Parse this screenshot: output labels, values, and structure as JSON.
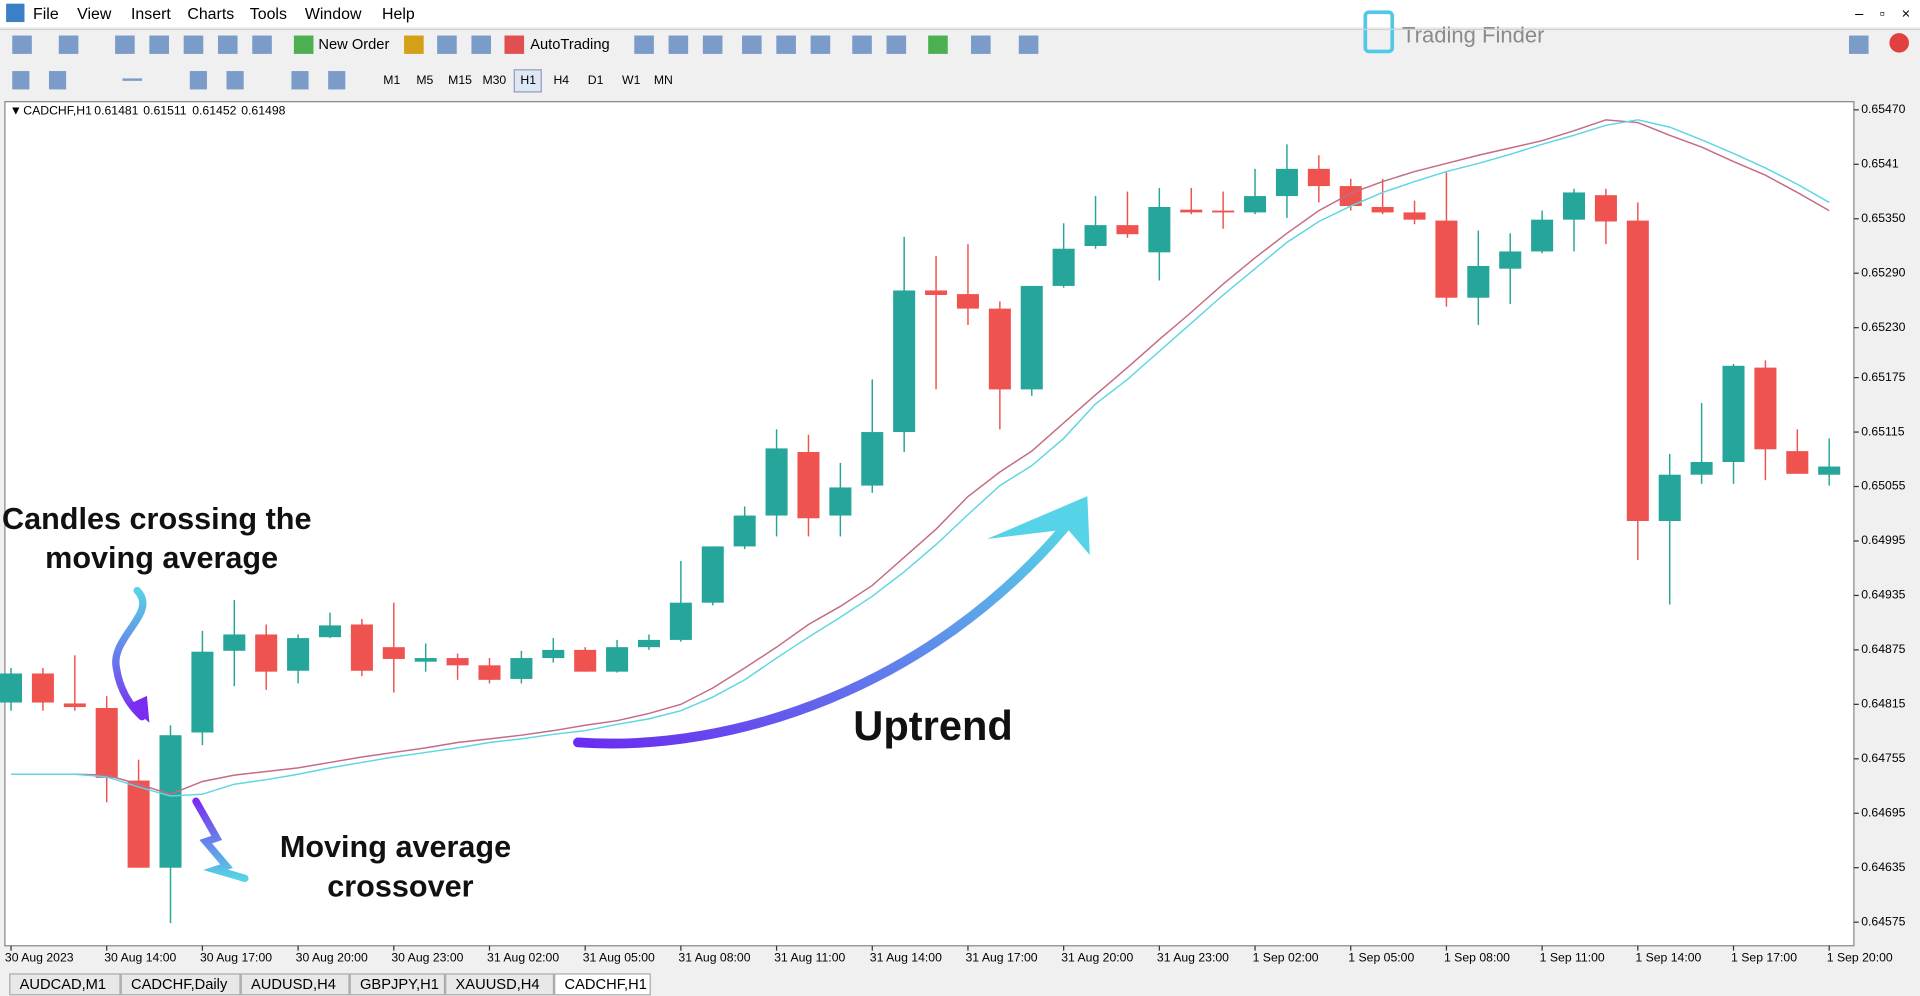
{
  "window": {
    "menu": [
      "File",
      "View",
      "Insert",
      "Charts",
      "Tools",
      "Window",
      "Help"
    ],
    "toolbar": [
      "New Order",
      "AutoTrading"
    ],
    "timeframes": [
      "M1",
      "M5",
      "M15",
      "M30",
      "H1",
      "H4",
      "D1",
      "W1",
      "MN"
    ],
    "tabs": [
      "AUDCAD,M1",
      "CADCHF,Daily",
      "AUDUSD,H4",
      "GBPJPY,H1",
      "XAUUSD,H4",
      "CADCHF,H1"
    ],
    "logo": "Trading Finder"
  },
  "chart_data": {
    "type": "candlestick",
    "symbol": "CADCHF,H1",
    "quote": [
      0.61481,
      0.61511,
      0.61452,
      0.61498
    ],
    "annotations": {
      "candles_crossing": [
        "Candles crossing the",
        "moving average"
      ],
      "crossover": [
        "Moving average",
        "crossover"
      ],
      "uptrend": "Uptrend"
    },
    "xtick_labels": [
      "30 Aug 2023",
      "30 Aug 14:00",
      "30 Aug 17:00",
      "30 Aug 20:00",
      "30 Aug 23:00",
      "31 Aug 02:00",
      "31 Aug 05:00",
      "31 Aug 08:00",
      "31 Aug 11:00",
      "31 Aug 14:00",
      "31 Aug 17:00",
      "31 Aug 20:00",
      "31 Aug 23:00",
      "1 Sep 02:00",
      "1 Sep 05:00",
      "1 Sep 08:00",
      "1 Sep 11:00",
      "1 Sep 14:00",
      "1 Sep 17:00",
      "1 Sep 20:00"
    ],
    "ylim": [
      0.64549,
      0.65479
    ],
    "yticks": [
      {
        "value": 0.6547,
        "label": "0.65470"
      },
      0.6541,
      {
        "value": 0.6535,
        "label": "0.65350"
      },
      {
        "value": 0.6529,
        "label": "0.65290"
      },
      {
        "value": 0.6523,
        "label": "0.65230"
      },
      0.65175,
      0.65115,
      0.65055,
      0.64995,
      0.64935,
      0.64875,
      0.64815,
      0.64755,
      0.64695,
      0.64635,
      0.64575
    ],
    "up_color": "#26a69a",
    "down_color": "#ef5350",
    "open": [
      0.64817,
      0.64849,
      0.64816,
      0.64811,
      0.64731,
      0.64635,
      0.64784,
      0.64874,
      0.64892,
      0.64852,
      0.64889,
      0.64903,
      0.64878,
      0.64862,
      0.64866,
      0.64858,
      0.64843,
      0.64866,
      0.64875,
      0.64851,
      0.64878,
      0.64886,
      0.64927,
      0.64989,
      0.65023,
      0.65093,
      0.65023,
      0.65056,
      0.65115,
      0.65271,
      0.65267,
      0.65251,
      0.65162,
      0.65276,
      0.6532,
      0.65343,
      0.65313,
      0.6536,
      0.65359,
      0.65357,
      0.65375,
      0.65405,
      0.65386,
      0.65363,
      0.65357,
      0.65348,
      0.65263,
      0.65295,
      0.65314,
      0.65349,
      0.65376,
      0.65348,
      0.65017,
      0.65068,
      0.65082,
      0.65186,
      0.65094,
      0.65068
    ],
    "high": [
      0.64855,
      0.64855,
      0.64869,
      0.64824,
      0.64754,
      0.64792,
      0.64896,
      0.6493,
      0.64903,
      0.64892,
      0.64916,
      0.64909,
      0.64927,
      0.64882,
      0.64871,
      0.64866,
      0.64874,
      0.64888,
      0.64878,
      0.64886,
      0.64892,
      0.64973,
      0.64989,
      0.65033,
      0.65118,
      0.65112,
      0.65081,
      0.65173,
      0.6533,
      0.65309,
      0.65322,
      0.65259,
      0.65276,
      0.65345,
      0.65375,
      0.6538,
      0.65384,
      0.65384,
      0.6538,
      0.65405,
      0.65432,
      0.6542,
      0.65394,
      0.65394,
      0.6537,
      0.65401,
      0.65337,
      0.65334,
      0.65359,
      0.65383,
      0.65383,
      0.65368,
      0.65091,
      0.65147,
      0.6519,
      0.65194,
      0.65118,
      0.65108
    ],
    "low": [
      0.64808,
      0.64808,
      0.64808,
      0.64707,
      0.64635,
      0.64574,
      0.6477,
      0.64835,
      0.64831,
      0.64838,
      0.64888,
      0.64846,
      0.64828,
      0.64851,
      0.64842,
      0.64838,
      0.64838,
      0.64861,
      0.64851,
      0.6485,
      0.64875,
      0.64884,
      0.64924,
      0.64986,
      0.65,
      0.65,
      0.65,
      0.65048,
      0.65093,
      0.65162,
      0.65233,
      0.65118,
      0.65155,
      0.65274,
      0.65317,
      0.65329,
      0.65282,
      0.65355,
      0.65339,
      0.65355,
      0.65351,
      0.65368,
      0.65359,
      0.65355,
      0.65344,
      0.65253,
      0.65233,
      0.65256,
      0.65312,
      0.65314,
      0.65322,
      0.64974,
      0.64925,
      0.65058,
      0.65058,
      0.65062,
      0.65069,
      0.65056
    ],
    "close": [
      0.64849,
      0.64817,
      0.64812,
      0.64734,
      0.64635,
      0.64781,
      0.64873,
      0.64892,
      0.64851,
      0.64888,
      0.64902,
      0.64852,
      0.64865,
      0.64866,
      0.64858,
      0.64842,
      0.64866,
      0.64875,
      0.64851,
      0.64878,
      0.64886,
      0.64927,
      0.64989,
      0.65023,
      0.65097,
      0.6502,
      0.65054,
      0.65115,
      0.65271,
      0.65266,
      0.65251,
      0.65162,
      0.65276,
      0.65317,
      0.65343,
      0.65333,
      0.65363,
      0.65357,
      0.65357,
      0.65375,
      0.65405,
      0.65386,
      0.65364,
      0.65357,
      0.65349,
      0.65263,
      0.65298,
      0.65314,
      0.65349,
      0.65379,
      0.65347,
      0.65017,
      0.65068,
      0.65082,
      0.65188,
      0.65096,
      0.65069,
      0.65077
    ],
    "lines": [
      {
        "color": "#c46b86",
        "values": [
          0.64738,
          0.64738,
          0.64738,
          0.64737,
          0.64727,
          0.64716,
          0.6473,
          0.64737,
          0.64741,
          0.64745,
          0.64751,
          0.64757,
          0.64762,
          0.64767,
          0.64773,
          0.64777,
          0.64781,
          0.64786,
          0.64792,
          0.64797,
          0.64805,
          0.64815,
          0.64833,
          0.64855,
          0.64878,
          0.64903,
          0.64923,
          0.64946,
          0.64977,
          0.65008,
          0.65044,
          0.65071,
          0.65094,
          0.65125,
          0.65156,
          0.65186,
          0.65217,
          0.65247,
          0.65278,
          0.65307,
          0.65334,
          0.65359,
          0.65378,
          0.65391,
          0.65402,
          0.65411,
          0.6542,
          0.65428,
          0.65436,
          0.65447,
          0.65459,
          0.65456,
          0.65442,
          0.65429,
          0.65413,
          0.65398,
          0.65379,
          0.65359
        ]
      },
      {
        "color": "#5fd6e2",
        "values": [
          0.64738,
          0.64738,
          0.64738,
          0.64735,
          0.64724,
          0.64714,
          0.64716,
          0.64727,
          0.64732,
          0.64738,
          0.64745,
          0.64751,
          0.64757,
          0.64762,
          0.64767,
          0.64773,
          0.64777,
          0.64782,
          0.64786,
          0.64793,
          0.64799,
          0.64808,
          0.64823,
          0.64842,
          0.64866,
          0.64889,
          0.64911,
          0.64934,
          0.64961,
          0.64991,
          0.65024,
          0.65056,
          0.65078,
          0.65108,
          0.65146,
          0.65173,
          0.65204,
          0.65235,
          0.65266,
          0.65295,
          0.65324,
          0.65347,
          0.65364,
          0.65379,
          0.65391,
          0.65402,
          0.65411,
          0.65421,
          0.65432,
          0.65442,
          0.65453,
          0.65459,
          0.65451,
          0.65437,
          0.65422,
          0.65406,
          0.65388,
          0.65368
        ]
      }
    ]
  }
}
